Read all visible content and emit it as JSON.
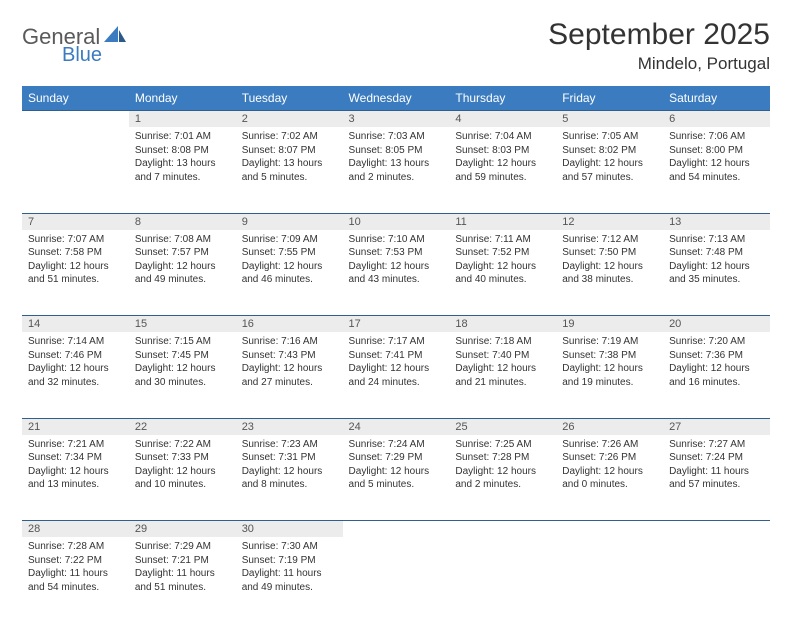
{
  "logo": {
    "text1": "General",
    "text2": "Blue"
  },
  "title": "September 2025",
  "location": "Mindelo, Portugal",
  "colors": {
    "header_bg": "#3b7bbf",
    "header_text": "#ffffff",
    "daynum_bg": "#ececec",
    "row_border": "#2f5f8f",
    "body_text": "#333333",
    "logo_gray": "#5a5a5a",
    "logo_blue": "#3b7bbf",
    "page_bg": "#ffffff"
  },
  "typography": {
    "title_fontsize": 30,
    "location_fontsize": 17,
    "header_fontsize": 12,
    "daynum_fontsize": 11,
    "cell_fontsize": 10
  },
  "weekdays": [
    "Sunday",
    "Monday",
    "Tuesday",
    "Wednesday",
    "Thursday",
    "Friday",
    "Saturday"
  ],
  "weeks": [
    {
      "days": [
        null,
        {
          "n": "1",
          "sunrise": "7:01 AM",
          "sunset": "8:08 PM",
          "daylight": "13 hours and 7 minutes."
        },
        {
          "n": "2",
          "sunrise": "7:02 AM",
          "sunset": "8:07 PM",
          "daylight": "13 hours and 5 minutes."
        },
        {
          "n": "3",
          "sunrise": "7:03 AM",
          "sunset": "8:05 PM",
          "daylight": "13 hours and 2 minutes."
        },
        {
          "n": "4",
          "sunrise": "7:04 AM",
          "sunset": "8:03 PM",
          "daylight": "12 hours and 59 minutes."
        },
        {
          "n": "5",
          "sunrise": "7:05 AM",
          "sunset": "8:02 PM",
          "daylight": "12 hours and 57 minutes."
        },
        {
          "n": "6",
          "sunrise": "7:06 AM",
          "sunset": "8:00 PM",
          "daylight": "12 hours and 54 minutes."
        }
      ]
    },
    {
      "days": [
        {
          "n": "7",
          "sunrise": "7:07 AM",
          "sunset": "7:58 PM",
          "daylight": "12 hours and 51 minutes."
        },
        {
          "n": "8",
          "sunrise": "7:08 AM",
          "sunset": "7:57 PM",
          "daylight": "12 hours and 49 minutes."
        },
        {
          "n": "9",
          "sunrise": "7:09 AM",
          "sunset": "7:55 PM",
          "daylight": "12 hours and 46 minutes."
        },
        {
          "n": "10",
          "sunrise": "7:10 AM",
          "sunset": "7:53 PM",
          "daylight": "12 hours and 43 minutes."
        },
        {
          "n": "11",
          "sunrise": "7:11 AM",
          "sunset": "7:52 PM",
          "daylight": "12 hours and 40 minutes."
        },
        {
          "n": "12",
          "sunrise": "7:12 AM",
          "sunset": "7:50 PM",
          "daylight": "12 hours and 38 minutes."
        },
        {
          "n": "13",
          "sunrise": "7:13 AM",
          "sunset": "7:48 PM",
          "daylight": "12 hours and 35 minutes."
        }
      ]
    },
    {
      "days": [
        {
          "n": "14",
          "sunrise": "7:14 AM",
          "sunset": "7:46 PM",
          "daylight": "12 hours and 32 minutes."
        },
        {
          "n": "15",
          "sunrise": "7:15 AM",
          "sunset": "7:45 PM",
          "daylight": "12 hours and 30 minutes."
        },
        {
          "n": "16",
          "sunrise": "7:16 AM",
          "sunset": "7:43 PM",
          "daylight": "12 hours and 27 minutes."
        },
        {
          "n": "17",
          "sunrise": "7:17 AM",
          "sunset": "7:41 PM",
          "daylight": "12 hours and 24 minutes."
        },
        {
          "n": "18",
          "sunrise": "7:18 AM",
          "sunset": "7:40 PM",
          "daylight": "12 hours and 21 minutes."
        },
        {
          "n": "19",
          "sunrise": "7:19 AM",
          "sunset": "7:38 PM",
          "daylight": "12 hours and 19 minutes."
        },
        {
          "n": "20",
          "sunrise": "7:20 AM",
          "sunset": "7:36 PM",
          "daylight": "12 hours and 16 minutes."
        }
      ]
    },
    {
      "days": [
        {
          "n": "21",
          "sunrise": "7:21 AM",
          "sunset": "7:34 PM",
          "daylight": "12 hours and 13 minutes."
        },
        {
          "n": "22",
          "sunrise": "7:22 AM",
          "sunset": "7:33 PM",
          "daylight": "12 hours and 10 minutes."
        },
        {
          "n": "23",
          "sunrise": "7:23 AM",
          "sunset": "7:31 PM",
          "daylight": "12 hours and 8 minutes."
        },
        {
          "n": "24",
          "sunrise": "7:24 AM",
          "sunset": "7:29 PM",
          "daylight": "12 hours and 5 minutes."
        },
        {
          "n": "25",
          "sunrise": "7:25 AM",
          "sunset": "7:28 PM",
          "daylight": "12 hours and 2 minutes."
        },
        {
          "n": "26",
          "sunrise": "7:26 AM",
          "sunset": "7:26 PM",
          "daylight": "12 hours and 0 minutes."
        },
        {
          "n": "27",
          "sunrise": "7:27 AM",
          "sunset": "7:24 PM",
          "daylight": "11 hours and 57 minutes."
        }
      ]
    },
    {
      "days": [
        {
          "n": "28",
          "sunrise": "7:28 AM",
          "sunset": "7:22 PM",
          "daylight": "11 hours and 54 minutes."
        },
        {
          "n": "29",
          "sunrise": "7:29 AM",
          "sunset": "7:21 PM",
          "daylight": "11 hours and 51 minutes."
        },
        {
          "n": "30",
          "sunrise": "7:30 AM",
          "sunset": "7:19 PM",
          "daylight": "11 hours and 49 minutes."
        },
        null,
        null,
        null,
        null
      ]
    }
  ],
  "labels": {
    "sunrise": "Sunrise:",
    "sunset": "Sunset:",
    "daylight": "Daylight:"
  }
}
